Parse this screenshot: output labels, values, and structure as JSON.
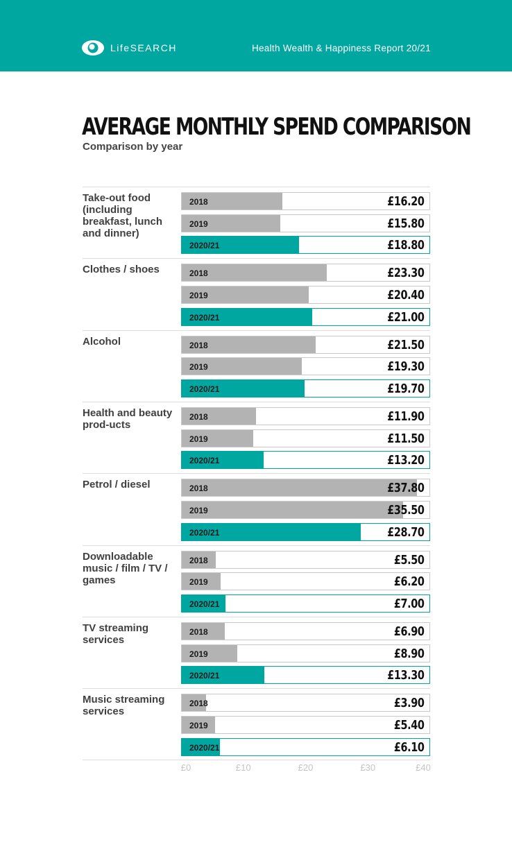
{
  "header": {
    "brand": "LifeSEARCH",
    "report_title": "Health Wealth & Happiness Report 20/21",
    "background_color": "#00a6a0"
  },
  "chart_data": {
    "type": "bar",
    "orientation": "horizontal",
    "title": "AVERAGE MONTHLY SPEND COMPARISON",
    "subtitle": "Comparison by year",
    "categories": [
      "Take-out food (including breakfast, lunch and dinner)",
      "Clothes / shoes",
      "Alcohol",
      "Health and beauty prod-ucts",
      "Petrol / diesel",
      "Downloadable music / film / TV / games",
      "TV streaming services",
      "Music streaming services"
    ],
    "series": [
      {
        "name": "2018",
        "color": "#b3b3b3",
        "values": [
          16.2,
          23.3,
          21.5,
          11.9,
          37.8,
          5.5,
          6.9,
          3.9
        ],
        "labels": [
          "£16.20",
          "£23.30",
          "£21.50",
          "£11.90",
          "£37.80",
          "£5.50",
          "£6.90",
          "£3.90"
        ]
      },
      {
        "name": "2019",
        "color": "#b3b3b3",
        "values": [
          15.8,
          20.4,
          19.3,
          11.5,
          35.5,
          6.2,
          8.9,
          5.4
        ],
        "labels": [
          "£15.80",
          "£20.40",
          "£19.30",
          "£11.50",
          "£35.50",
          "£6.20",
          "£8.90",
          "£5.40"
        ]
      },
      {
        "name": "2020/21",
        "color": "#00a6a0",
        "values": [
          18.8,
          21.0,
          19.7,
          13.2,
          28.7,
          7.0,
          13.3,
          6.1
        ],
        "labels": [
          "£18.80",
          "£21.00",
          "£19.70",
          "£13.20",
          "£28.70",
          "£7.00",
          "£13.30",
          "£6.10"
        ]
      }
    ],
    "xlim": [
      0,
      40
    ],
    "xticks": [
      0,
      10,
      20,
      30,
      40
    ],
    "xtick_labels": [
      "£0",
      "£10",
      "£20",
      "£30",
      "£40"
    ]
  }
}
